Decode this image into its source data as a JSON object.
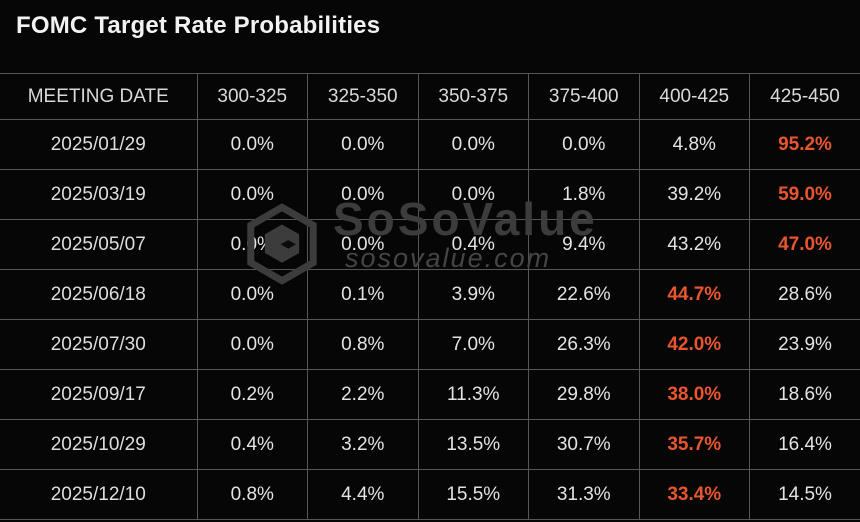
{
  "title": "FOMC Target Rate Probabilities",
  "watermark": {
    "brand": "SoSoValue",
    "domain": "sosovalue.com"
  },
  "colors": {
    "background": "#060606",
    "grid_border": "#565656",
    "text": "#e3e3e3",
    "highlight": "#e8552f",
    "watermark": "#3c3c3c"
  },
  "chart_data": {
    "type": "table",
    "title": "FOMC Target Rate Probabilities",
    "columns": [
      "MEETING DATE",
      "300-325",
      "325-350",
      "350-375",
      "375-400",
      "400-425",
      "425-450"
    ],
    "rows": [
      {
        "date": "2025/01/29",
        "values": [
          "0.0%",
          "0.0%",
          "0.0%",
          "0.0%",
          "4.8%",
          "95.2%"
        ],
        "highlight_index": 5
      },
      {
        "date": "2025/03/19",
        "values": [
          "0.0%",
          "0.0%",
          "0.0%",
          "1.8%",
          "39.2%",
          "59.0%"
        ],
        "highlight_index": 5
      },
      {
        "date": "2025/05/07",
        "values": [
          "0.0%",
          "0.0%",
          "0.4%",
          "9.4%",
          "43.2%",
          "47.0%"
        ],
        "highlight_index": 5
      },
      {
        "date": "2025/06/18",
        "values": [
          "0.0%",
          "0.1%",
          "3.9%",
          "22.6%",
          "44.7%",
          "28.6%"
        ],
        "highlight_index": 4
      },
      {
        "date": "2025/07/30",
        "values": [
          "0.0%",
          "0.8%",
          "7.0%",
          "26.3%",
          "42.0%",
          "23.9%"
        ],
        "highlight_index": 4
      },
      {
        "date": "2025/09/17",
        "values": [
          "0.2%",
          "2.2%",
          "11.3%",
          "29.8%",
          "38.0%",
          "18.6%"
        ],
        "highlight_index": 4
      },
      {
        "date": "2025/10/29",
        "values": [
          "0.4%",
          "3.2%",
          "13.5%",
          "30.7%",
          "35.7%",
          "16.4%"
        ],
        "highlight_index": 4
      },
      {
        "date": "2025/12/10",
        "values": [
          "0.8%",
          "4.4%",
          "15.5%",
          "31.3%",
          "33.4%",
          "14.5%"
        ],
        "highlight_index": 4
      }
    ],
    "layout_hints": {
      "grid": "on",
      "highlight_meaning": "highest probability rate range per meeting shown bold orange"
    }
  }
}
